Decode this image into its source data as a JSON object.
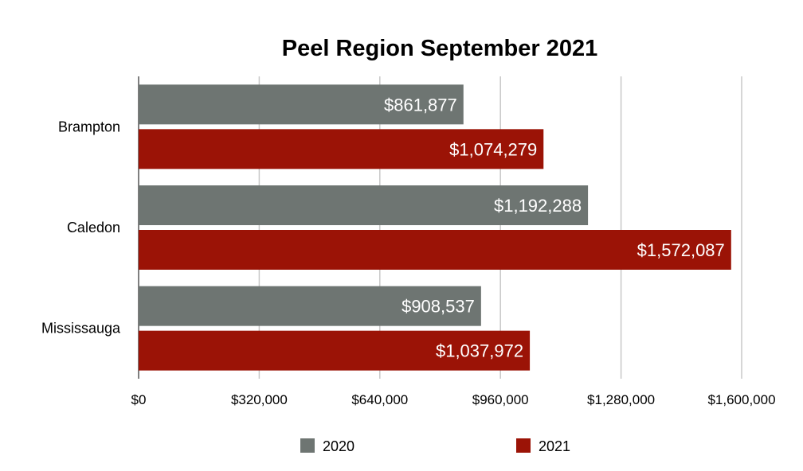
{
  "chart_data": {
    "type": "bar",
    "orientation": "horizontal",
    "title": "Peel Region September 2021",
    "categories": [
      "Brampton",
      "Caledon",
      "Mississauga"
    ],
    "series": [
      {
        "name": "2020",
        "color": "#6e7572",
        "values": [
          861877,
          1192288,
          908537
        ],
        "labels": [
          "$861,877",
          "$1,192,288",
          "$908,537"
        ]
      },
      {
        "name": "2021",
        "color": "#9b1306",
        "values": [
          1074279,
          1572087,
          1037972
        ],
        "labels": [
          "$1,074,279",
          "$1,572,087",
          "$1,037,972"
        ]
      }
    ],
    "xlim": [
      0,
      1600000
    ],
    "x_ticks": [
      0,
      320000,
      640000,
      960000,
      1280000,
      1600000
    ],
    "x_tick_labels": [
      "$0",
      "$320,000",
      "$640,000",
      "$960,000",
      "$1,280,000",
      "$1,600,000"
    ],
    "grid": true,
    "legend_position": "bottom"
  }
}
